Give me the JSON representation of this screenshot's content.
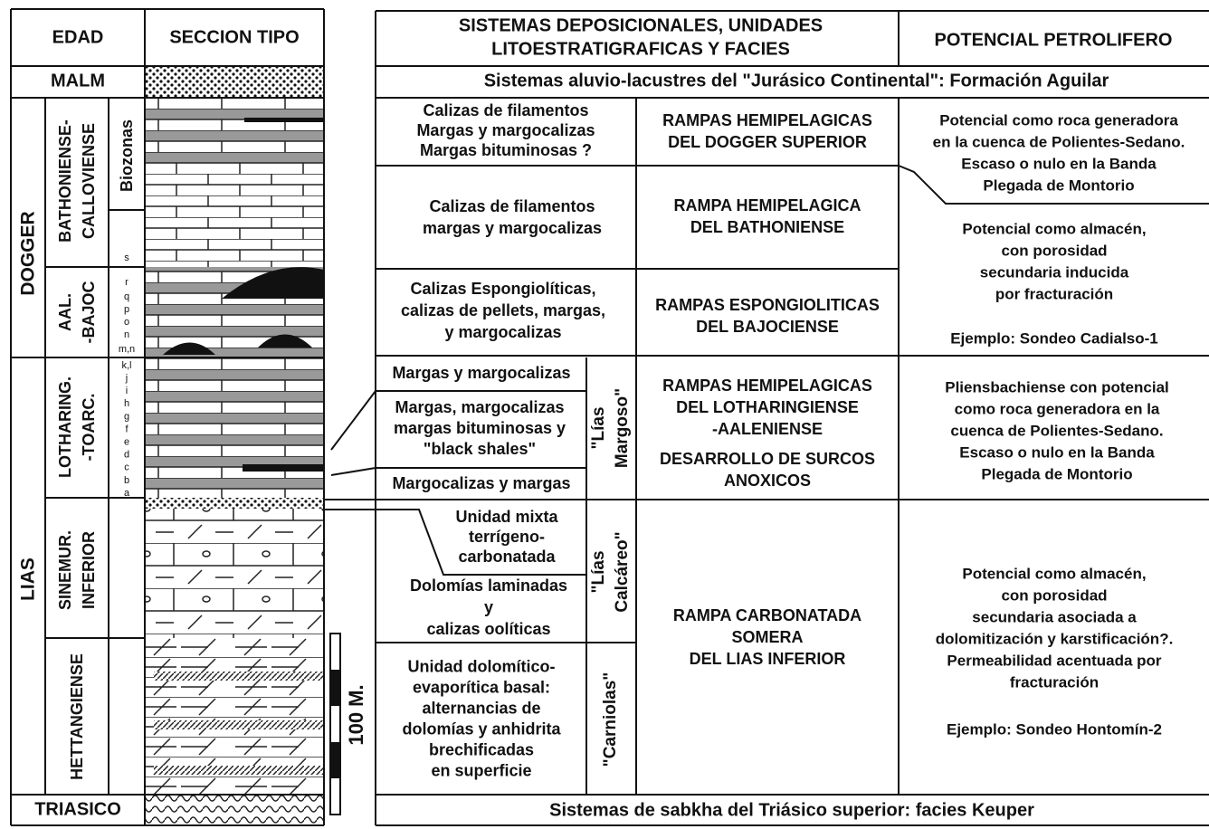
{
  "left": {
    "headers": [
      "EDAD",
      "SECCION TIPO"
    ],
    "ages": {
      "malm": "MALM",
      "dogger": "DOGGER",
      "lias": "LIAS",
      "triasico": "TRIASICO"
    },
    "stages": {
      "bath": [
        "BATHONIENSE-",
        "CALLOVIENSE"
      ],
      "aal": [
        "AAL.",
        "-BAJOC"
      ],
      "lothar": [
        "LOTHARING.",
        "-TOARC."
      ],
      "sinemur": [
        "SINEMUR.",
        "INFERIOR"
      ],
      "hett": [
        "HETTANGIENSE"
      ]
    },
    "biozonas": "Biozonas",
    "biozones": [
      "s",
      "r",
      "q",
      "p",
      "o",
      "n",
      "m,n",
      "k,l",
      "j",
      "i",
      "h",
      "g",
      "f",
      "e",
      "d",
      "c",
      "b",
      "a"
    ],
    "scale": "100 M."
  },
  "right": {
    "headers": [
      [
        "SISTEMAS DEPOSICIONALES, UNIDADES",
        "LITOESTRATIGRAFICAS Y FACIES"
      ],
      "POTENCIAL PETROLIFERO"
    ],
    "malm_row": "Sistemas aluvio-lacustres del \"Jurásico Continental\": Formación Aguilar",
    "trias_row": "Sistemas de sabkha del Triásico superior: facies Keuper",
    "facies": {
      "f1": [
        "Calizas de filamentos",
        "Margas y margocalizas",
        "Margas bituminosas ?"
      ],
      "f2": [
        "Calizas de filamentos",
        "margas y margocalizas"
      ],
      "f3": [
        "Calizas Espongiolíticas,",
        "calizas de pellets, margas,",
        "y margocalizas"
      ],
      "fa": [
        "Margas y margocalizas"
      ],
      "fb": [
        "Margas, margocalizas",
        "margas bituminosas y",
        "\"black shales\""
      ],
      "fc": [
        "Margocalizas y margas"
      ],
      "fd": [
        "Unidad mixta",
        "terrígeno-",
        "carbonatada"
      ],
      "fe": [
        "Dolomías laminadas",
        "y",
        "calizas oolíticas"
      ],
      "ff": [
        "Unidad dolomítico-",
        "evaporítica basal:",
        "alternancias de",
        "dolomías y anhidrita",
        "brechificadas",
        "en superficie"
      ]
    },
    "units": {
      "margoso": [
        "\"Lías",
        "Margoso\""
      ],
      "calcareo": [
        "\"Lías",
        "Calcáreo\""
      ],
      "carniolas": [
        "\"Carniolas\""
      ]
    },
    "systems": {
      "s1": [
        "RAMPAS HEMIPELAGICAS",
        "DEL DOGGER SUPERIOR"
      ],
      "s2": [
        "RAMPA HEMIPELAGICA",
        "DEL BATHONIENSE"
      ],
      "s3": [
        "RAMPAS ESPONGIOLITICAS",
        "DEL BAJOCIENSE"
      ],
      "s4": [
        "RAMPAS HEMIPELAGICAS",
        "DEL LOTHARINGIENSE",
        "-AALENIENSE"
      ],
      "s4b": [
        "DESARROLLO DE SURCOS",
        "ANOXICOS"
      ],
      "s5": [
        "RAMPA CARBONATADA",
        "SOMERA",
        "DEL LIAS INFERIOR"
      ]
    },
    "potential": {
      "p1": [
        "Potencial como roca generadora",
        "en la cuenca de Polientes-Sedano.",
        "Escaso o nulo en la Banda",
        "Plegada de Montorio"
      ],
      "p2": [
        "Potencial como almacén,",
        "con porosidad",
        "secundaria inducida",
        "por fracturación"
      ],
      "ex2": [
        "Ejemplo: Sondeo Cadialso-1"
      ],
      "p3": [
        "Pliensbachiense con potencial",
        "como roca generadora en la",
        "cuenca de Polientes-Sedano.",
        "Escaso o nulo en la Banda",
        "Plegada de Montorio"
      ],
      "p4": [
        "Potencial como almacén,",
        "con porosidad",
        "secundaria asociada a",
        "dolomitización y karstificación?.",
        "Permeabilidad acentuada por",
        "fracturación"
      ],
      "ex4": [
        "Ejemplo: Sondeo Hontomín-2"
      ]
    }
  }
}
